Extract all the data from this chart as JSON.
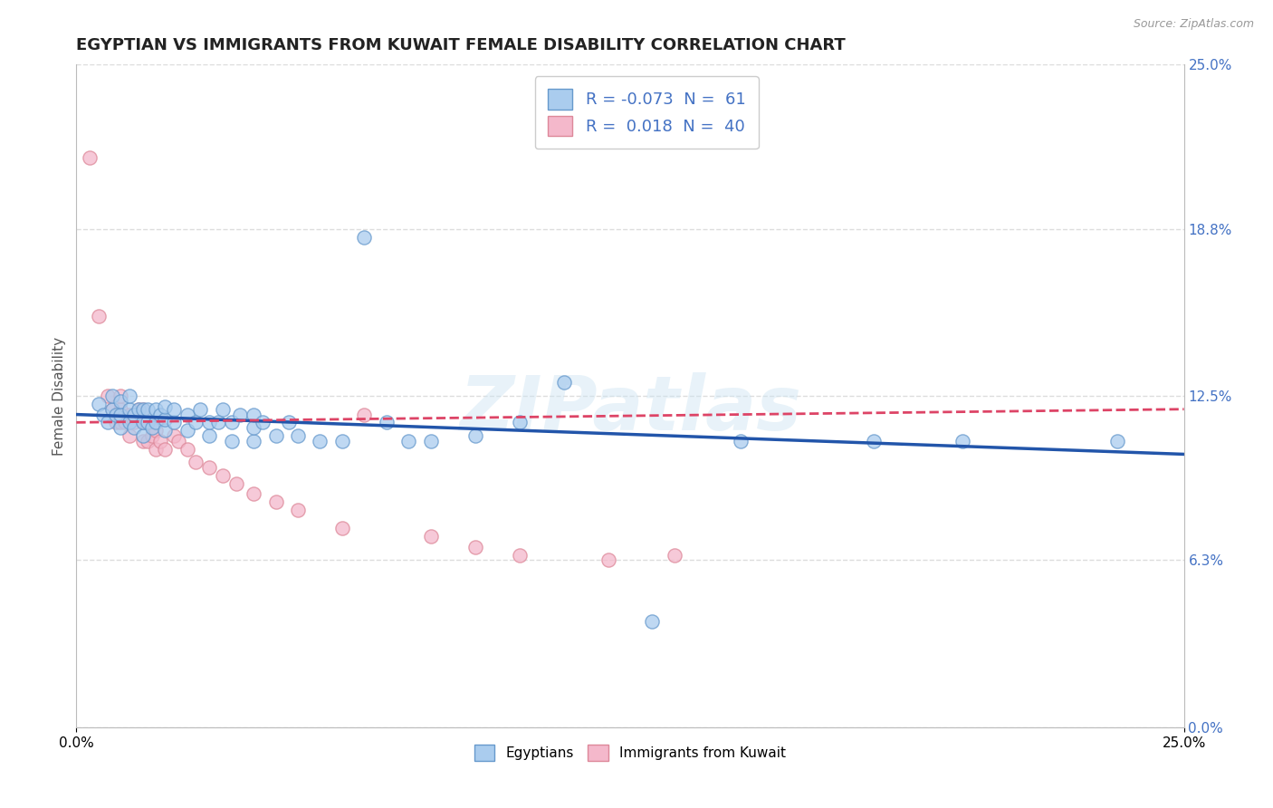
{
  "title": "EGYPTIAN VS IMMIGRANTS FROM KUWAIT FEMALE DISABILITY CORRELATION CHART",
  "source": "Source: ZipAtlas.com",
  "ylabel": "Female Disability",
  "x_min": 0.0,
  "x_max": 0.25,
  "y_min": 0.0,
  "y_max": 0.25,
  "y_ticks_right": [
    0.0,
    0.063,
    0.125,
    0.188,
    0.25
  ],
  "y_tick_labels_right": [
    "0.0%",
    "6.3%",
    "12.5%",
    "18.8%",
    "25.0%"
  ],
  "legend_r1": "R = -0.073",
  "legend_n1": "N =  61",
  "legend_r2": "R =  0.018",
  "legend_n2": "N =  40",
  "blue_scatter_x": [
    0.005,
    0.006,
    0.007,
    0.008,
    0.008,
    0.009,
    0.01,
    0.01,
    0.01,
    0.012,
    0.012,
    0.012,
    0.013,
    0.013,
    0.014,
    0.015,
    0.015,
    0.015,
    0.016,
    0.016,
    0.017,
    0.018,
    0.018,
    0.019,
    0.02,
    0.02,
    0.02,
    0.022,
    0.022,
    0.025,
    0.025,
    0.027,
    0.028,
    0.03,
    0.03,
    0.032,
    0.033,
    0.035,
    0.035,
    0.037,
    0.04,
    0.04,
    0.04,
    0.042,
    0.045,
    0.048,
    0.05,
    0.055,
    0.06,
    0.065,
    0.07,
    0.075,
    0.08,
    0.09,
    0.1,
    0.11,
    0.13,
    0.15,
    0.18,
    0.2,
    0.235
  ],
  "blue_scatter_y": [
    0.122,
    0.118,
    0.115,
    0.12,
    0.125,
    0.118,
    0.113,
    0.118,
    0.123,
    0.115,
    0.12,
    0.125,
    0.113,
    0.118,
    0.12,
    0.11,
    0.115,
    0.12,
    0.115,
    0.12,
    0.113,
    0.115,
    0.12,
    0.118,
    0.112,
    0.116,
    0.121,
    0.115,
    0.12,
    0.112,
    0.118,
    0.115,
    0.12,
    0.11,
    0.115,
    0.115,
    0.12,
    0.108,
    0.115,
    0.118,
    0.108,
    0.113,
    0.118,
    0.115,
    0.11,
    0.115,
    0.11,
    0.108,
    0.108,
    0.185,
    0.115,
    0.108,
    0.108,
    0.11,
    0.115,
    0.13,
    0.04,
    0.108,
    0.108,
    0.108,
    0.108
  ],
  "pink_scatter_x": [
    0.003,
    0.005,
    0.007,
    0.008,
    0.009,
    0.01,
    0.01,
    0.01,
    0.011,
    0.012,
    0.012,
    0.013,
    0.014,
    0.015,
    0.015,
    0.015,
    0.016,
    0.016,
    0.017,
    0.018,
    0.018,
    0.019,
    0.02,
    0.022,
    0.023,
    0.025,
    0.027,
    0.03,
    0.033,
    0.036,
    0.04,
    0.045,
    0.05,
    0.06,
    0.065,
    0.08,
    0.09,
    0.1,
    0.12,
    0.135
  ],
  "pink_scatter_y": [
    0.215,
    0.155,
    0.125,
    0.12,
    0.115,
    0.115,
    0.12,
    0.125,
    0.115,
    0.11,
    0.118,
    0.115,
    0.12,
    0.108,
    0.115,
    0.12,
    0.108,
    0.115,
    0.11,
    0.105,
    0.112,
    0.108,
    0.105,
    0.11,
    0.108,
    0.105,
    0.1,
    0.098,
    0.095,
    0.092,
    0.088,
    0.085,
    0.082,
    0.075,
    0.118,
    0.072,
    0.068,
    0.065,
    0.063,
    0.065
  ],
  "blue_line_x": [
    0.0,
    0.25
  ],
  "blue_line_y": [
    0.118,
    0.103
  ],
  "pink_line_x": [
    0.0,
    0.25
  ],
  "pink_line_y": [
    0.115,
    0.12
  ],
  "scatter_size": 120,
  "blue_fill": "#aaccee",
  "pink_fill": "#f4b8cb",
  "blue_edge": "#6699cc",
  "pink_edge": "#dd8899",
  "blue_line_color": "#2255aa",
  "pink_line_color": "#dd4466",
  "grid_color": "#dddddd",
  "background_color": "#ffffff",
  "watermark": "ZIPatlas",
  "title_fontsize": 13,
  "axis_label_fontsize": 11,
  "tick_fontsize": 11,
  "right_tick_color": "#4472c4"
}
